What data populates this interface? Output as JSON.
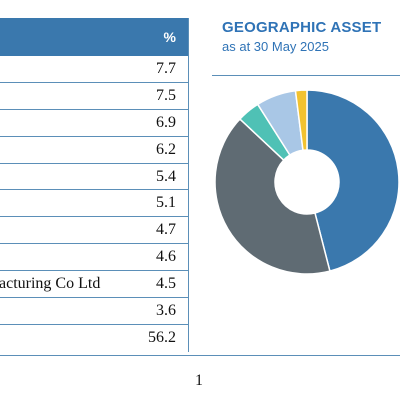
{
  "table": {
    "header_pct": "%",
    "rows": [
      {
        "name": "",
        "value": "7.7"
      },
      {
        "name": "",
        "value": "7.5"
      },
      {
        "name": "",
        "value": "6.9"
      },
      {
        "name": "",
        "value": "6.2"
      },
      {
        "name": "",
        "value": "5.4"
      },
      {
        "name": "",
        "value": "5.1"
      },
      {
        "name": "",
        "value": "4.7"
      },
      {
        "name": "",
        "value": "4.6"
      },
      {
        "name": "acturing Co Ltd",
        "value": "4.5"
      },
      {
        "name": "",
        "value": "3.6"
      },
      {
        "name": "",
        "value": "56.2"
      }
    ],
    "colors": {
      "header": "#3a78ad",
      "rule": "#5b8fb8"
    }
  },
  "chart": {
    "title": "GEOGRAPHIC ASSET",
    "subtitle": "as at 30 May 2025",
    "title_color": "#2f73b6"
  },
  "chart_data": {
    "type": "pie",
    "title": "GEOGRAPHIC ASSET",
    "subtitle": "as at 30 May 2025",
    "values": [
      46,
      41,
      4,
      7,
      2
    ],
    "colors": [
      "#3a78ad",
      "#5f6b73",
      "#4fc1b5",
      "#a9c7e6",
      "#f2c230"
    ],
    "legend": "none"
  },
  "footer": {
    "page_number": "1"
  }
}
